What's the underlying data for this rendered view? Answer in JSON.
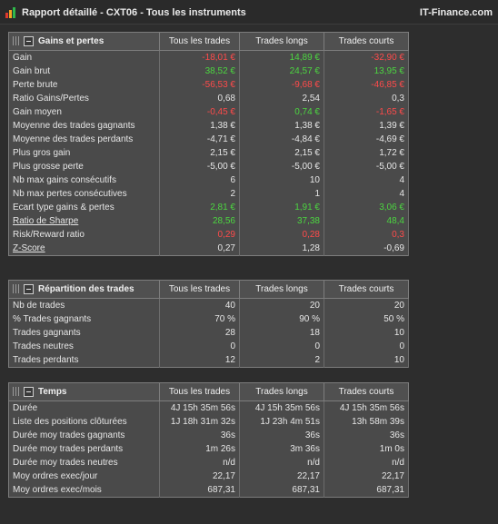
{
  "window": {
    "title": "Rapport détaillé - CXT06 - Tous les instruments",
    "brand": "IT-Finance.com",
    "logo_colors": [
      "#e03a2e",
      "#f2a622",
      "#2fb84a"
    ]
  },
  "columns": [
    "Tous les trades",
    "Trades longs",
    "Trades courts"
  ],
  "colors": {
    "negative": "#ff4a4a",
    "positive": "#4cd640",
    "neutral": "#e6e6e6"
  },
  "sections": [
    {
      "title": "Gains et pertes",
      "rows": [
        {
          "label": "Gain",
          "values": [
            "-18,01 €",
            "14,89 €",
            "-32,90 €"
          ],
          "colors": [
            "red",
            "green",
            "red"
          ]
        },
        {
          "label": "Gain brut",
          "values": [
            "38,52 €",
            "24,57 €",
            "13,95 €"
          ],
          "colors": [
            "green",
            "green",
            "green"
          ]
        },
        {
          "label": "Perte brute",
          "values": [
            "-56,53 €",
            "-9,68 €",
            "-46,85 €"
          ],
          "colors": [
            "red",
            "red",
            "red"
          ]
        },
        {
          "label": "Ratio Gains/Pertes",
          "values": [
            "0,68",
            "2,54",
            "0,3"
          ]
        },
        {
          "label": "Gain moyen",
          "values": [
            "-0,45 €",
            "0,74 €",
            "-1,65 €"
          ],
          "colors": [
            "red",
            "green",
            "red"
          ]
        },
        {
          "label": "Moyenne des trades gagnants",
          "values": [
            "1,38 €",
            "1,38 €",
            "1,39 €"
          ]
        },
        {
          "label": "Moyenne des trades perdants",
          "values": [
            "-4,71 €",
            "-4,84 €",
            "-4,69 €"
          ]
        },
        {
          "label": "Plus gros gain",
          "values": [
            "2,15 €",
            "2,15 €",
            "1,72 €"
          ]
        },
        {
          "label": "Plus grosse perte",
          "values": [
            "-5,00 €",
            "-5,00 €",
            "-5,00 €"
          ]
        },
        {
          "label": "Nb max gains consécutifs",
          "values": [
            "6",
            "10",
            "4"
          ]
        },
        {
          "label": "Nb max pertes consécutives",
          "values": [
            "2",
            "1",
            "4"
          ]
        },
        {
          "label": "Ecart type gains & pertes",
          "values": [
            "2,81 €",
            "1,91 €",
            "3,06 €"
          ],
          "colors": [
            "green",
            "green",
            "green"
          ]
        },
        {
          "label": "Ratio de Sharpe",
          "values": [
            "28,56",
            "37,38",
            "48,4"
          ],
          "colors": [
            "green",
            "green",
            "green"
          ],
          "underline": true
        },
        {
          "label": "Risk/Reward ratio",
          "values": [
            "0,29",
            "0,28",
            "0,3"
          ],
          "colors": [
            "red",
            "red",
            "red"
          ]
        },
        {
          "label": "Z-Score",
          "values": [
            "0,27",
            "1,28",
            "-0,69"
          ],
          "underline": true
        }
      ]
    },
    {
      "title": "Répartition des trades",
      "rows": [
        {
          "label": "Nb de trades",
          "values": [
            "40",
            "20",
            "20"
          ]
        },
        {
          "label": "% Trades gagnants",
          "values": [
            "70 %",
            "90 %",
            "50 %"
          ]
        },
        {
          "label": "Trades gagnants",
          "values": [
            "28",
            "18",
            "10"
          ]
        },
        {
          "label": "Trades neutres",
          "values": [
            "0",
            "0",
            "0"
          ]
        },
        {
          "label": "Trades perdants",
          "values": [
            "12",
            "2",
            "10"
          ]
        }
      ]
    },
    {
      "title": "Temps",
      "rows": [
        {
          "label": "Durée",
          "values": [
            "4J 15h 35m 56s",
            "4J 15h 35m 56s",
            "4J 15h 35m 56s"
          ]
        },
        {
          "label": "Liste des positions clôturées",
          "values": [
            "1J 18h 31m 32s",
            "1J 23h 4m 51s",
            "13h 58m 39s"
          ]
        },
        {
          "label": "Durée moy trades gagnants",
          "values": [
            "36s",
            "36s",
            "36s"
          ]
        },
        {
          "label": "Durée moy trades perdants",
          "values": [
            "1m 26s",
            "3m 36s",
            "1m 0s"
          ]
        },
        {
          "label": "Durée moy trades neutres",
          "values": [
            "n/d",
            "n/d",
            "n/d"
          ]
        },
        {
          "label": "Moy ordres exec/jour",
          "values": [
            "22,17",
            "22,17",
            "22,17"
          ]
        },
        {
          "label": "Moy ordres exec/mois",
          "values": [
            "687,31",
            "687,31",
            "687,31"
          ]
        }
      ]
    }
  ]
}
